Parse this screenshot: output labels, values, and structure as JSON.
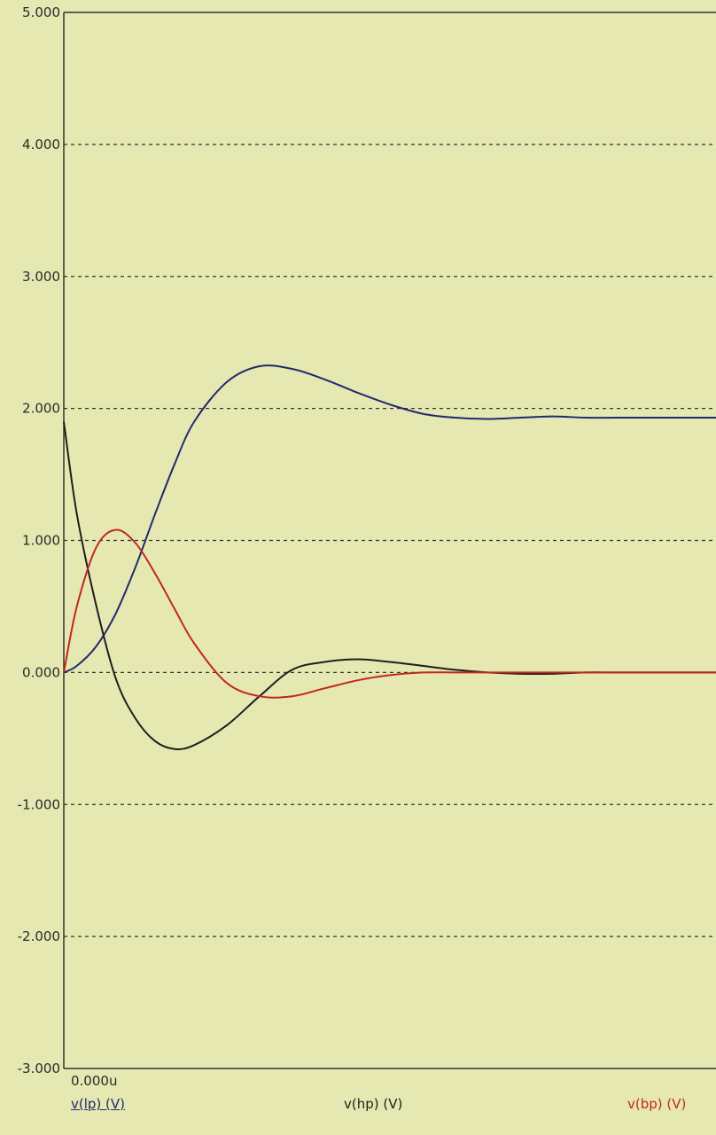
{
  "chart_data": {
    "type": "line",
    "title": "",
    "xlabel": "",
    "ylabel": "",
    "ylim": [
      -3,
      5
    ],
    "yticks": [
      "5.000",
      "4.000",
      "3.000",
      "2.000",
      "1.000",
      "0.000",
      "-1.000",
      "-2.000",
      "-3.000"
    ],
    "ytick_values": [
      5,
      4,
      3,
      2,
      1,
      0,
      -1,
      -2,
      -3
    ],
    "x_start_label": "0.000u",
    "xlim": [
      0,
      100
    ],
    "grid": true,
    "legend_placement": "bottom",
    "series": [
      {
        "name": "v(lp) (V)",
        "color": "#1f2a6e",
        "x": [
          0,
          2,
          5,
          8,
          11,
          14,
          17,
          20,
          25,
          30,
          35,
          40,
          45,
          50,
          55,
          60,
          65,
          70,
          75,
          80,
          85,
          90,
          95,
          100
        ],
        "y": [
          0,
          0.05,
          0.2,
          0.45,
          0.8,
          1.2,
          1.58,
          1.9,
          2.2,
          2.32,
          2.3,
          2.22,
          2.12,
          2.03,
          1.96,
          1.93,
          1.92,
          1.93,
          1.94,
          1.93,
          1.93,
          1.93,
          1.93,
          1.93
        ]
      },
      {
        "name": "v(hp) (V)",
        "color": "#1e1e1e",
        "x": [
          0,
          2,
          5,
          8,
          11,
          14,
          17,
          20,
          25,
          30,
          35,
          40,
          45,
          50,
          55,
          60,
          65,
          70,
          75,
          80,
          85,
          90,
          95,
          100
        ],
        "y": [
          1.9,
          1.2,
          0.5,
          -0.05,
          -0.35,
          -0.52,
          -0.58,
          -0.55,
          -0.4,
          -0.18,
          0.02,
          0.08,
          0.1,
          0.08,
          0.05,
          0.02,
          0,
          -0.01,
          -0.01,
          0,
          0,
          0,
          0,
          0
        ]
      },
      {
        "name": "v(bp) (V)",
        "color": "#c0281e",
        "x": [
          0,
          2,
          5,
          8,
          11,
          14,
          17,
          20,
          25,
          30,
          35,
          40,
          45,
          50,
          55,
          60,
          65,
          70,
          75,
          80,
          85,
          90,
          95,
          100
        ],
        "y": [
          0,
          0.5,
          0.95,
          1.08,
          0.98,
          0.75,
          0.48,
          0.22,
          -0.08,
          -0.18,
          -0.18,
          -0.12,
          -0.06,
          -0.02,
          0,
          0,
          0,
          0,
          0,
          0,
          0,
          0,
          0,
          0
        ]
      }
    ]
  }
}
